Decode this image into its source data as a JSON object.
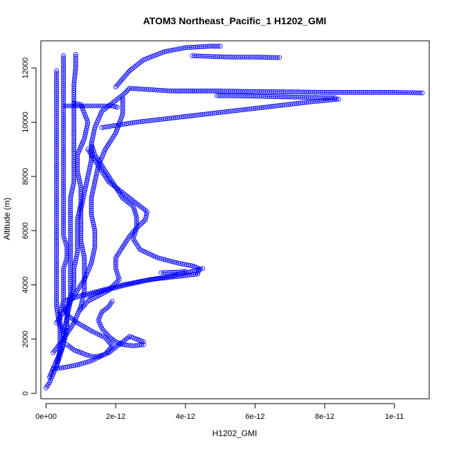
{
  "chart_data": {
    "type": "scatter",
    "title": "ATOM3 Northeast_Pacific_1 H1202_GMI",
    "xlabel": "H1202_GMI",
    "ylabel": "Altitude (m)",
    "xlim": [
      -1.5e-13,
      1.1e-11
    ],
    "ylim": [
      -200,
      13000
    ],
    "xticks": [
      0,
      2e-12,
      4e-12,
      6e-12,
      8e-12,
      1e-11
    ],
    "xtick_labels": [
      "0e+00",
      "2e-12",
      "4e-12",
      "6e-12",
      "8e-12",
      "1e-11"
    ],
    "yticks": [
      0,
      2000,
      4000,
      6000,
      8000,
      10000,
      12000
    ],
    "ytick_labels": [
      "0",
      "2000",
      "4000",
      "6000",
      "8000",
      "10000",
      "12000"
    ],
    "grid": false,
    "legend": "none",
    "marker": "open-circle",
    "color": "#0000ff",
    "series": [
      {
        "points": [
          [
            0.0,
            200
          ],
          [
            1e-13,
            400
          ],
          [
            2e-13,
            700
          ],
          [
            3e-13,
            1000
          ],
          [
            4e-13,
            1400
          ],
          [
            5e-13,
            1800
          ],
          [
            5e-13,
            2200
          ],
          [
            4e-13,
            2600
          ],
          [
            4e-13,
            3000
          ],
          [
            5e-13,
            3400
          ],
          [
            5e-13,
            3800
          ],
          [
            5e-13,
            4200
          ],
          [
            5e-13,
            4600
          ],
          [
            6e-13,
            5000
          ],
          [
            6e-13,
            5400
          ],
          [
            5e-13,
            5800
          ],
          [
            5e-13,
            6200
          ],
          [
            5e-13,
            6600
          ],
          [
            5e-13,
            7000
          ],
          [
            5e-13,
            7400
          ],
          [
            5e-13,
            7800
          ],
          [
            5e-13,
            8200
          ],
          [
            5e-13,
            8600
          ],
          [
            5e-13,
            9000
          ],
          [
            5e-13,
            9400
          ],
          [
            5e-13,
            9800
          ],
          [
            5e-13,
            10200
          ],
          [
            5e-13,
            10600
          ],
          [
            5e-13,
            11000
          ],
          [
            5e-13,
            11500
          ],
          [
            5e-13,
            12000
          ],
          [
            5e-13,
            12450
          ]
        ]
      },
      {
        "points": [
          [
            1e-13,
            600
          ],
          [
            3e-13,
            1200
          ],
          [
            5e-13,
            1800
          ],
          [
            6e-13,
            2400
          ],
          [
            6e-13,
            3000
          ],
          [
            7e-13,
            3600
          ],
          [
            7e-13,
            4200
          ],
          [
            7e-13,
            4800
          ],
          [
            7e-13,
            5400
          ],
          [
            7e-13,
            6000
          ],
          [
            7e-13,
            6600
          ],
          [
            7e-13,
            7200
          ],
          [
            8e-13,
            7800
          ],
          [
            8e-13,
            8400
          ],
          [
            8e-13,
            9000
          ],
          [
            8e-13,
            9600
          ],
          [
            8e-13,
            10200
          ],
          [
            8e-13,
            10800
          ],
          [
            8e-13,
            11400
          ],
          [
            8.5e-13,
            12000
          ],
          [
            8.5e-13,
            12500
          ]
        ]
      },
      {
        "points": [
          [
            3e-13,
            1000
          ],
          [
            4e-13,
            1600
          ],
          [
            4e-13,
            2400
          ],
          [
            3e-13,
            3200
          ],
          [
            3e-13,
            4000
          ],
          [
            3e-13,
            4800
          ],
          [
            3e-13,
            5600
          ],
          [
            3e-13,
            6400
          ],
          [
            3e-13,
            7200
          ],
          [
            3e-13,
            8000
          ],
          [
            3e-13,
            8800
          ],
          [
            3e-13,
            9600
          ],
          [
            3e-13,
            10400
          ],
          [
            3e-13,
            11000
          ],
          [
            3e-13,
            11500
          ],
          [
            3e-13,
            11900
          ]
        ]
      },
      {
        "points": [
          [
            5e-13,
            10600
          ],
          [
            7e-13,
            10600
          ],
          [
            9e-13,
            10600
          ],
          [
            1.1e-12,
            10600
          ],
          [
            1.3e-12,
            10600
          ],
          [
            1.5e-12,
            10600
          ],
          [
            1.7e-12,
            10600
          ],
          [
            1.9e-12,
            10600
          ],
          [
            2.05e-12,
            10550
          ]
        ]
      },
      {
        "points": [
          [
            2e-13,
            1500
          ],
          [
            5e-13,
            2000
          ],
          [
            8e-13,
            2600
          ],
          [
            1e-12,
            3200
          ],
          [
            1.1e-12,
            3800
          ],
          [
            1.1e-12,
            4400
          ],
          [
            1.1e-12,
            5000
          ],
          [
            1e-12,
            5600
          ],
          [
            1e-12,
            6200
          ],
          [
            1e-12,
            6800
          ],
          [
            1.1e-12,
            7400
          ],
          [
            1.2e-12,
            8000
          ],
          [
            1.3e-12,
            8600
          ],
          [
            1.3e-12,
            9200
          ],
          [
            1.4e-12,
            9800
          ],
          [
            1.6e-12,
            10400
          ],
          [
            2.2e-12,
            11000
          ],
          [
            2.4e-12,
            11250
          ],
          [
            3e-12,
            11200
          ],
          [
            3.6e-12,
            11150
          ],
          [
            4.2e-12,
            11150
          ]
        ]
      },
      {
        "points": [
          [
            1.3e-12,
            9200
          ],
          [
            1.4e-12,
            8800
          ],
          [
            1.6e-12,
            8400
          ],
          [
            1.8e-12,
            8000
          ],
          [
            2e-12,
            7600
          ],
          [
            2.2e-12,
            7200
          ],
          [
            2.5e-12,
            6900
          ],
          [
            2.6e-12,
            6500
          ],
          [
            2.6e-12,
            6100
          ],
          [
            2.4e-12,
            5800
          ],
          [
            2.2e-12,
            5400
          ],
          [
            2e-12,
            5000
          ],
          [
            2e-12,
            4600
          ],
          [
            2.1e-12,
            4200
          ],
          [
            1.8e-12,
            3800
          ],
          [
            1.5e-12,
            3600
          ],
          [
            1.2e-12,
            3400
          ],
          [
            1e-12,
            3100
          ]
        ]
      },
      {
        "points": [
          [
            1.2e-12,
            9000
          ],
          [
            1.4e-12,
            8600
          ],
          [
            1.6e-12,
            8200
          ],
          [
            1.8e-12,
            7800
          ],
          [
            2.1e-12,
            7500
          ],
          [
            2.4e-12,
            7200
          ],
          [
            2.7e-12,
            6900
          ],
          [
            2.9e-12,
            6700
          ],
          [
            2.85e-12,
            6400
          ],
          [
            2.6e-12,
            6100
          ],
          [
            2.5e-12,
            5700
          ],
          [
            2.7e-12,
            5300
          ],
          [
            3.2e-12,
            5000
          ],
          [
            3.8e-12,
            4800
          ],
          [
            4.2e-12,
            4700
          ],
          [
            4.4e-12,
            4600
          ],
          [
            4.35e-12,
            4400
          ],
          [
            3.7e-12,
            4300
          ],
          [
            3e-12,
            4200
          ],
          [
            2.3e-12,
            4000
          ],
          [
            1.7e-12,
            3800
          ],
          [
            1.2e-12,
            3600
          ]
        ]
      },
      {
        "points": [
          [
            2e-12,
            11300
          ],
          [
            2.4e-12,
            11900
          ],
          [
            2.8e-12,
            12300
          ],
          [
            3.4e-12,
            12600
          ],
          [
            4e-12,
            12750
          ],
          [
            4.7e-12,
            12800
          ],
          [
            5e-12,
            12800
          ]
        ]
      },
      {
        "points": [
          [
            4.2e-12,
            12450
          ],
          [
            4.8e-12,
            12420
          ],
          [
            5.4e-12,
            12400
          ],
          [
            6e-12,
            12400
          ],
          [
            6.7e-12,
            12380
          ]
        ]
      },
      {
        "points": [
          [
            4.2e-12,
            11150
          ],
          [
            5e-12,
            11150
          ],
          [
            6e-12,
            11130
          ],
          [
            7e-12,
            11120
          ],
          [
            8e-12,
            11100
          ],
          [
            9e-12,
            11100
          ],
          [
            1e-11,
            11100
          ],
          [
            1.08e-11,
            11080
          ]
        ]
      },
      {
        "points": [
          [
            4.9e-12,
            10980
          ],
          [
            5.6e-12,
            10970
          ],
          [
            6.3e-12,
            10950
          ],
          [
            7e-12,
            10930
          ],
          [
            7.6e-12,
            10910
          ],
          [
            8.3e-12,
            10900
          ]
        ]
      },
      {
        "points": [
          [
            1.6e-12,
            9800
          ],
          [
            2.6e-12,
            10000
          ],
          [
            3.6e-12,
            10150
          ],
          [
            4.6e-12,
            10300
          ],
          [
            5.6e-12,
            10450
          ],
          [
            6.6e-12,
            10600
          ],
          [
            7.6e-12,
            10750
          ],
          [
            8.4e-12,
            10850
          ]
        ]
      },
      {
        "points": [
          [
            6e-13,
            1800
          ],
          [
            8e-13,
            1600
          ],
          [
            1e-12,
            1500
          ],
          [
            1.2e-12,
            1400
          ],
          [
            1.4e-12,
            1350
          ],
          [
            1.6e-12,
            1400
          ],
          [
            1.8e-12,
            1500
          ],
          [
            2e-12,
            1700
          ],
          [
            2.2e-12,
            1900
          ],
          [
            2.4e-12,
            2100
          ],
          [
            2.6e-12,
            2000
          ],
          [
            2.8e-12,
            1900
          ],
          [
            2.8e-12,
            1800
          ],
          [
            2.5e-12,
            1750
          ],
          [
            2.2e-12,
            1800
          ],
          [
            2e-12,
            1900
          ],
          [
            1.8e-12,
            2100
          ],
          [
            1.6e-12,
            2400
          ],
          [
            1.5e-12,
            2700
          ],
          [
            1.6e-12,
            3000
          ],
          [
            1.8e-12,
            3200
          ],
          [
            1.9e-12,
            3400
          ]
        ]
      },
      {
        "points": [
          [
            2e-13,
            900
          ],
          [
            5e-13,
            950
          ],
          [
            9e-13,
            1050
          ],
          [
            1.3e-12,
            1200
          ],
          [
            1.7e-12,
            1450
          ],
          [
            1.9e-12,
            1750
          ],
          [
            1.7e-12,
            2050
          ],
          [
            1.3e-12,
            2300
          ],
          [
            9e-13,
            2600
          ],
          [
            6e-13,
            2900
          ],
          [
            5e-13,
            3200
          ]
        ]
      },
      {
        "points": [
          [
            5e-13,
            3400
          ],
          [
            1e-12,
            3600
          ],
          [
            1.6e-12,
            3800
          ],
          [
            2.2e-12,
            4000
          ],
          [
            2.8e-12,
            4150
          ],
          [
            3.5e-12,
            4300
          ],
          [
            4.2e-12,
            4500
          ],
          [
            4.5e-12,
            4600
          ]
        ]
      },
      {
        "points": [
          [
            3e-13,
            2600
          ],
          [
            5e-13,
            3000
          ],
          [
            7e-13,
            3400
          ],
          [
            9e-13,
            3800
          ],
          [
            1.1e-12,
            4200
          ],
          [
            1.3e-12,
            4800
          ],
          [
            1.4e-12,
            5400
          ],
          [
            1.4e-12,
            6000
          ],
          [
            1.3e-12,
            6600
          ],
          [
            1.3e-12,
            7200
          ],
          [
            1.4e-12,
            7800
          ],
          [
            1.5e-12,
            8400
          ],
          [
            1.7e-12,
            9000
          ],
          [
            2e-12,
            9600
          ],
          [
            2.2e-12,
            10300
          ],
          [
            2.2e-12,
            10900
          ]
        ]
      },
      {
        "points": [
          [
            8e-13,
            10700
          ],
          [
            1e-12,
            10650
          ],
          [
            1.2e-12,
            10000
          ],
          [
            1.1e-12,
            9400
          ],
          [
            9e-13,
            8800
          ],
          [
            9e-13,
            8200
          ],
          [
            1e-12,
            7600
          ],
          [
            1e-12,
            7000
          ],
          [
            9e-13,
            6400
          ],
          [
            9e-13,
            5800
          ],
          [
            9e-13,
            5200
          ],
          [
            8e-13,
            4600
          ],
          [
            8e-13,
            4000
          ],
          [
            7e-13,
            3400
          ],
          [
            6e-13,
            2800
          ],
          [
            5e-13,
            2200
          ]
        ]
      },
      {
        "points": [
          [
            3.3e-12,
            4450
          ],
          [
            3.5e-12,
            4460
          ],
          [
            3.8e-12,
            4470
          ],
          [
            4e-12,
            4500
          ]
        ]
      }
    ]
  }
}
